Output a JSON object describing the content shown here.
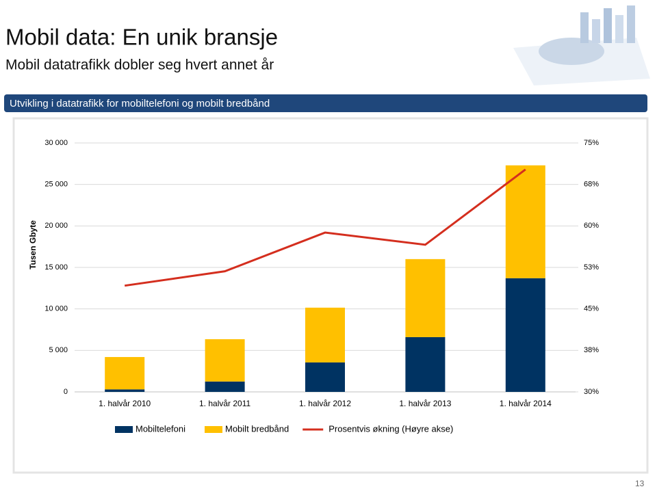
{
  "slide": {
    "title": "Mobil data: En unik bransje",
    "subtitle": "Mobil datatrafikk dobler seg hvert annet år",
    "banner": "Utvikling i datatrafikk for mobiltelefoni og mobilt bredbånd",
    "page_number": "13"
  },
  "chart_data": {
    "type": "bar",
    "stacked": true,
    "ylabel": "Tusen Gbyte",
    "categories": [
      "1. halvår 2010",
      "1. halvår 2011",
      "1. halvår 2012",
      "1. halvår 2013",
      "1. halvår 2014"
    ],
    "series": [
      {
        "name": "Mobilt bredbånd",
        "color": "#ffc000",
        "values": [
          3900,
          5100,
          6600,
          9400,
          13600
        ],
        "stack_order": 1
      },
      {
        "name": "Mobiltelefoni",
        "color": "#003362",
        "values": [
          300,
          1250,
          3550,
          6600,
          13700
        ],
        "stack_order": 0
      },
      {
        "name": "Prosentvis økning (Høyre akse)",
        "color": "#d42e1e",
        "type": "line",
        "axis": "y2",
        "values": [
          49.2,
          51.8,
          58.8,
          56.6,
          70.2
        ]
      }
    ],
    "ylim": [
      0,
      30000
    ],
    "yticks": [
      0,
      {
        "value": 5000,
        "label": "5 000"
      },
      {
        "value": 10000,
        "label": "10 000"
      },
      {
        "value": 15000,
        "label": "15 000"
      },
      {
        "value": 20000,
        "label": "20 000"
      },
      {
        "value": 25000,
        "label": "25 000"
      },
      {
        "value": 30000,
        "label": "30 000"
      }
    ],
    "y2lim": [
      30,
      75
    ],
    "y2ticks": [
      {
        "value": 30,
        "label": "30%"
      },
      {
        "value": 37.5,
        "label": "38%"
      },
      {
        "value": 45,
        "label": "45%"
      },
      {
        "value": 52.5,
        "label": "53%"
      },
      {
        "value": 60,
        "label": "60%"
      },
      {
        "value": 67.5,
        "label": "68%"
      },
      {
        "value": 75,
        "label": "75%"
      }
    ],
    "grid": true,
    "legend": "bottom"
  }
}
